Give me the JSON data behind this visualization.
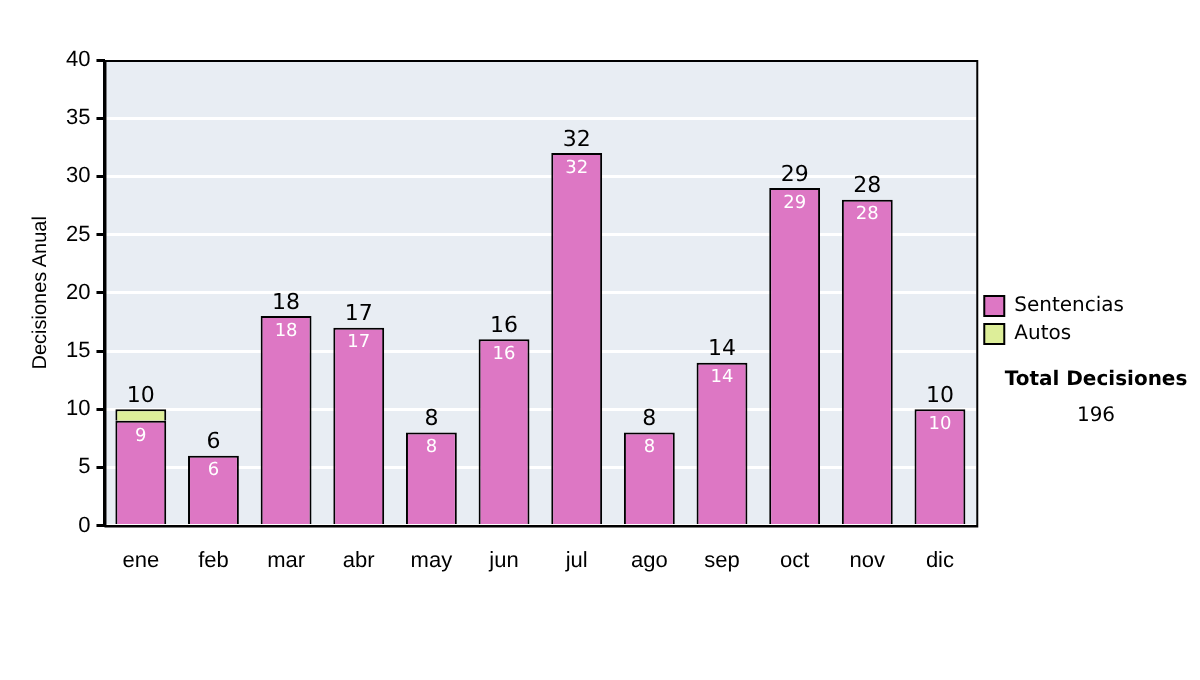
{
  "chart_data": {
    "type": "bar",
    "stacked": true,
    "ylabel": "Decisiones Anual",
    "categories": [
      "ene",
      "feb",
      "mar",
      "abr",
      "may",
      "jun",
      "jul",
      "ago",
      "sep",
      "oct",
      "nov",
      "dic"
    ],
    "series": [
      {
        "name": "Sentencias",
        "color": "#dd77c4",
        "values": [
          9,
          6,
          18,
          17,
          8,
          16,
          32,
          8,
          14,
          29,
          28,
          10
        ],
        "value_labels": [
          "9",
          "6",
          "18",
          "17",
          "8",
          "16",
          "32",
          "8",
          "14",
          "29",
          "28",
          "10"
        ]
      },
      {
        "name": "Autos",
        "color": "#ddee99",
        "values": [
          1,
          0,
          0,
          0,
          0,
          0,
          0,
          0,
          0,
          0,
          0,
          0
        ]
      }
    ],
    "totals": [
      "10",
      "6",
      "18",
      "17",
      "8",
      "16",
      "32",
      "8",
      "14",
      "29",
      "28",
      "10"
    ],
    "ylim": [
      0,
      40
    ],
    "yticks": [
      0,
      5,
      10,
      15,
      20,
      25,
      30,
      35,
      40
    ],
    "grid": "y",
    "legend": "right",
    "annotations": [
      "Total Decisiones",
      "196"
    ]
  }
}
